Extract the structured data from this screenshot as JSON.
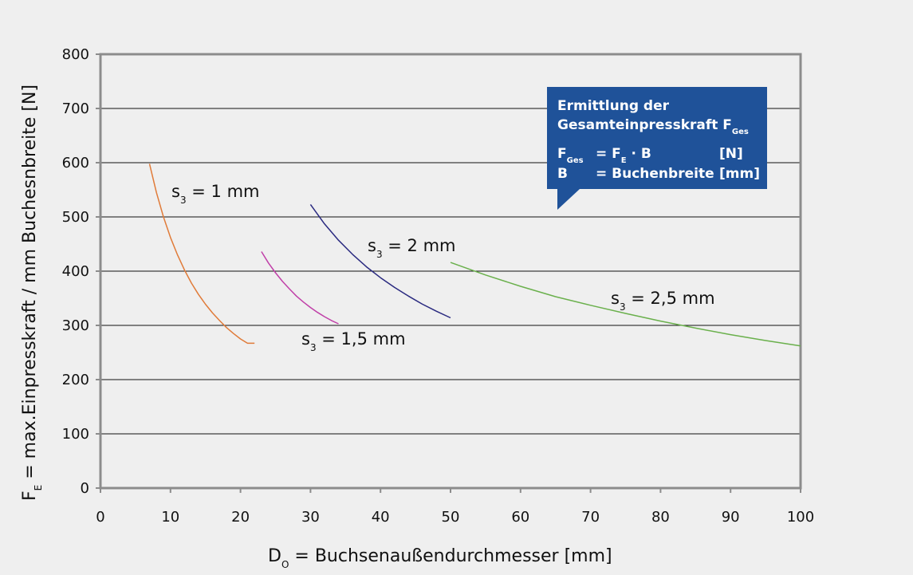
{
  "chart_data": {
    "type": "line",
    "xlabel": "D",
    "xlabel_sub": "O",
    "xlabel_rest": " = Buchsenaußendurchmesser [mm]",
    "ylabel": "F",
    "ylabel_sub": "E",
    "ylabel_rest": " = max.Einpresskraft / mm Buchesnbreite [N]",
    "xlim": [
      0,
      100
    ],
    "ylim": [
      0,
      800
    ],
    "xticks": [
      "0",
      "10",
      "20",
      "30",
      "40",
      "50",
      "60",
      "70",
      "80",
      "90",
      "100"
    ],
    "yticks": [
      "0",
      "100",
      "200",
      "300",
      "400",
      "500",
      "600",
      "700",
      "800"
    ],
    "grid": "horizontal",
    "series": [
      {
        "name": "s3 = 1 mm",
        "label_main": "s",
        "label_sub": "3",
        "label_rest": " = 1 mm",
        "color": "#e07b39",
        "x": [
          7,
          8,
          9,
          10,
          11,
          12,
          13,
          14,
          15,
          16,
          17,
          18,
          19,
          20,
          21,
          22
        ],
        "y": [
          598,
          545,
          500,
          462,
          430,
          402,
          378,
          357,
          339,
          323,
          309,
          296,
          285,
          275,
          267,
          267
        ]
      },
      {
        "name": "s3 = 1,5 mm",
        "label_main": "s",
        "label_sub": "3",
        "label_rest": " = 1,5 mm",
        "color": "#c040a8",
        "x": [
          23,
          24,
          25,
          26,
          27,
          28,
          29,
          30,
          31,
          32,
          33,
          34
        ],
        "y": [
          436,
          415,
          397,
          381,
          367,
          354,
          343,
          333,
          324,
          316,
          309,
          303
        ]
      },
      {
        "name": "s3 = 2 mm",
        "label_main": "s",
        "label_sub": "3",
        "label_rest": " = 2 mm",
        "color": "#2a2a80",
        "x": [
          30,
          32,
          34,
          36,
          38,
          40,
          42,
          44,
          46,
          48,
          50
        ],
        "y": [
          523,
          487,
          457,
          431,
          408,
          388,
          370,
          354,
          339,
          326,
          314
        ]
      },
      {
        "name": "s3 = 2,5 mm",
        "label_main": "s",
        "label_sub": "3",
        "label_rest": " = 2,5 mm",
        "color": "#6ab04c",
        "x": [
          50,
          55,
          60,
          65,
          70,
          75,
          80,
          85,
          90,
          95,
          100
        ],
        "y": [
          416,
          393,
          372,
          353,
          337,
          322,
          308,
          295,
          283,
          272,
          262
        ]
      }
    ],
    "callout": {
      "title_line1": "Ermittlung der",
      "title_line2": "Gesamteinpresskraft F",
      "title_line2_sub": "Ges",
      "row1_left": "F",
      "row1_left_sub": "Ges",
      "row1_eq": "= F",
      "row1_eq_sub": "E",
      "row1_eq_rest": " · B",
      "row1_unit": "[N]",
      "row2_left": "B",
      "row2_eq": "= Buchenbreite",
      "row2_unit": "[mm]",
      "bg_color": "#1f5299"
    }
  }
}
